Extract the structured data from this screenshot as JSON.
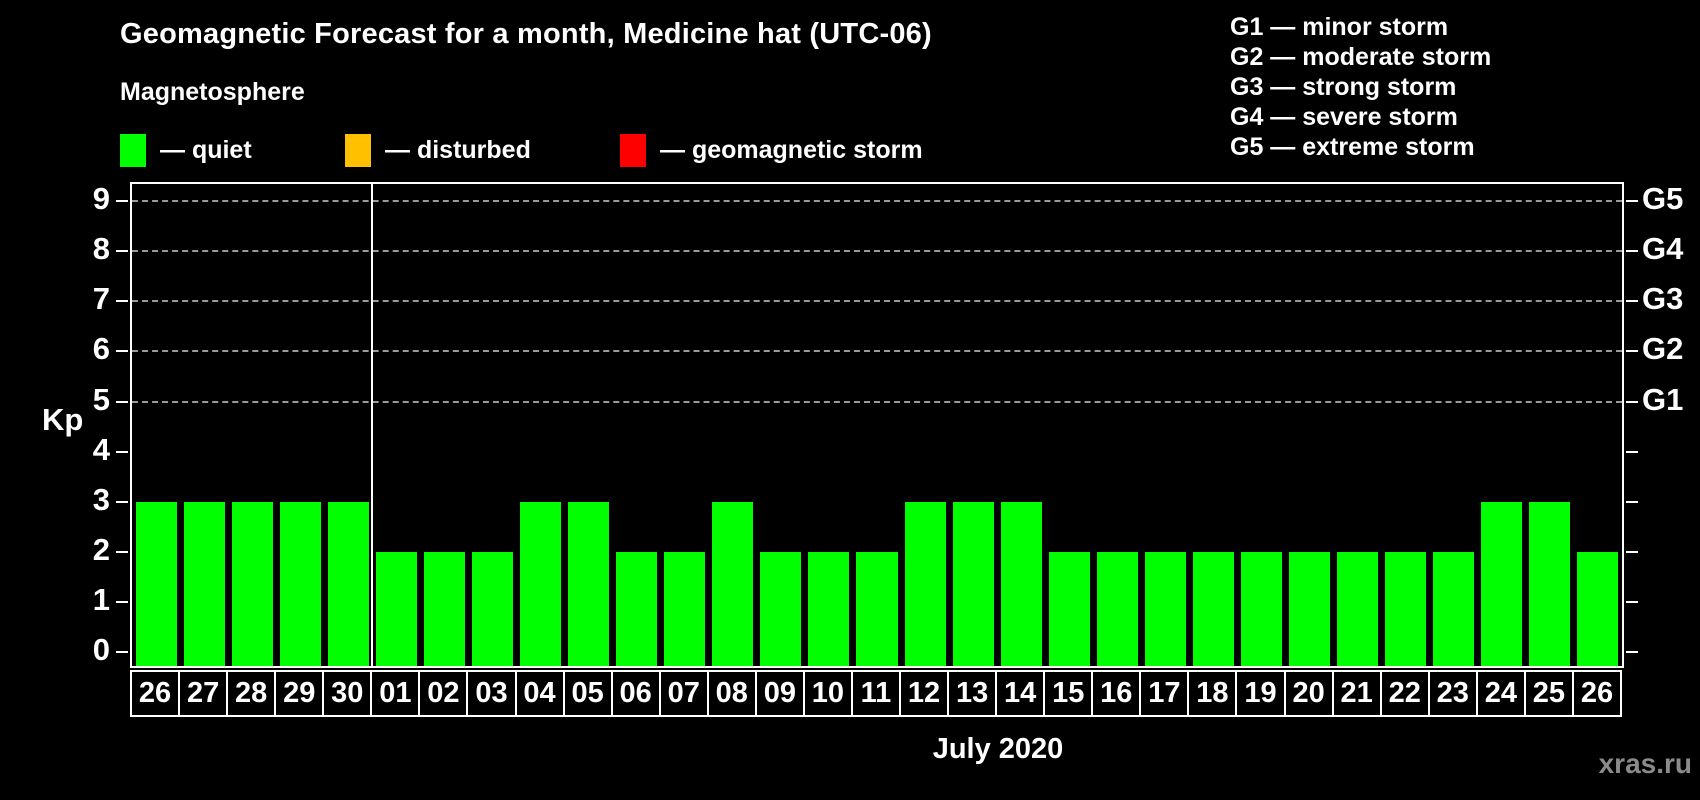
{
  "title": "Geomagnetic Forecast for a month, Medicine hat (UTC-06)",
  "subtitle": "Magnetosphere",
  "legend": [
    {
      "name": "quiet",
      "label": "— quiet",
      "color": "#00ff00"
    },
    {
      "name": "disturbed",
      "label": "— disturbed",
      "color": "#ffc000"
    },
    {
      "name": "geomagnetic-storm",
      "label": "— geomagnetic storm",
      "color": "#ff0000"
    }
  ],
  "g_legend": [
    "G1 — minor storm",
    "G2 — moderate storm",
    "G3 — strong storm",
    "G4 — severe storm",
    "G5 — extreme storm"
  ],
  "watermark": "xras.ru",
  "chart_data": {
    "type": "bar",
    "title": "Geomagnetic Forecast for a month, Medicine hat (UTC-06)",
    "ylabel": "Kp",
    "xlabel": "July 2020",
    "ylim": [
      0,
      9
    ],
    "yticks": [
      0,
      1,
      2,
      3,
      4,
      5,
      6,
      7,
      8,
      9
    ],
    "grid": "dashed horizontal at Kp 5-9 only",
    "categories": [
      "26",
      "27",
      "28",
      "29",
      "30",
      "01",
      "02",
      "03",
      "04",
      "05",
      "06",
      "07",
      "08",
      "09",
      "10",
      "11",
      "12",
      "13",
      "14",
      "15",
      "16",
      "17",
      "18",
      "19",
      "20",
      "21",
      "22",
      "23",
      "24",
      "25",
      "26"
    ],
    "values": [
      3,
      3,
      3,
      3,
      3,
      2,
      2,
      2,
      3,
      3,
      2,
      2,
      3,
      2,
      2,
      2,
      3,
      3,
      3,
      2,
      2,
      2,
      2,
      2,
      2,
      2,
      2,
      2,
      3,
      3,
      2
    ],
    "bar_status": "quiet",
    "bar_color": "#00ff00",
    "month_break_index": 5,
    "right_axis": {
      "labels": [
        "G1",
        "G2",
        "G3",
        "G4",
        "G5"
      ],
      "kp_positions": [
        5,
        6,
        7,
        8,
        9
      ]
    },
    "colors": {
      "background": "#000000",
      "text": "#ffffff",
      "axis": "#ffffff",
      "gridline": "#9a9a9a",
      "watermark": "#8b8b8b"
    }
  }
}
